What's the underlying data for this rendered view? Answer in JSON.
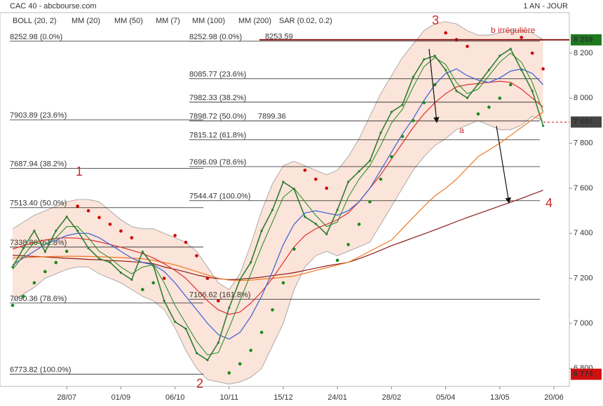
{
  "chart_data": {
    "type": "line",
    "title": "CAC 40 - abcbourse.com",
    "period": "1 AN - JOUR",
    "categories": [
      null,
      null,
      null,
      null,
      null,
      "28/07",
      null,
      null,
      null,
      null,
      "01/09",
      null,
      null,
      null,
      null,
      "06/10",
      null,
      null,
      null,
      null,
      "10/11",
      null,
      null,
      null,
      null,
      "15/12",
      null,
      null,
      null,
      null,
      "24/01",
      null,
      null,
      null,
      null,
      "28/02",
      null,
      null,
      null,
      null,
      "05/04",
      null,
      null,
      null,
      null,
      "13/05",
      null,
      null,
      null,
      null,
      "20/06"
    ],
    "values": [
      7250,
      7334,
      7411,
      7318,
      7411,
      7473,
      7411,
      7334,
      7287,
      7271,
      7225,
      7194,
      7318,
      7256,
      7100,
      7007,
      6976,
      6868,
      6837,
      6914,
      7069,
      7194,
      7271,
      7411,
      7504,
      7628,
      7597,
      7473,
      7442,
      7396,
      7504,
      7628,
      7675,
      7722,
      7846,
      7939,
      7970,
      8094,
      8172,
      8188,
      8125,
      8032,
      8001,
      8063,
      8125,
      8188,
      8219,
      8125,
      8032,
      7877,
      null
    ],
    "color": "#2e7d32",
    "series": [
      {
        "name": "BOLL (20, 2)",
        "color": "#f6c4ab",
        "upper": [
          7420,
          7450,
          7480,
          7500,
          7520,
          7540,
          7550,
          7550,
          7540,
          7500,
          7460,
          7430,
          7420,
          7420,
          7400,
          7380,
          7360,
          7320,
          7250,
          7180,
          7150,
          7220,
          7350,
          7500,
          7620,
          7700,
          7720,
          7700,
          7680,
          7660,
          7680,
          7740,
          7820,
          7920,
          8020,
          8100,
          8180,
          8240,
          8300,
          8330,
          8340,
          8330,
          8300,
          8280,
          8280,
          8290,
          8300,
          8300,
          8290,
          8260,
          null
        ],
        "lower": [
          7100,
          7130,
          7160,
          7200,
          7220,
          7240,
          7250,
          7250,
          7220,
          7200,
          7180,
          7150,
          7120,
          7100,
          7060,
          6980,
          6880,
          6800,
          6750,
          6740,
          6730,
          6740,
          6760,
          6800,
          6900,
          7000,
          7150,
          7250,
          7300,
          7320,
          7300,
          7320,
          7340,
          7360,
          7440,
          7520,
          7600,
          7680,
          7740,
          7790,
          7820,
          7860,
          7880,
          7900,
          7880,
          7860,
          7860,
          7880,
          7920,
          7900,
          null
        ]
      },
      {
        "name": "MM (20)",
        "color": "#3a5fd9",
        "values": [
          7260,
          7290,
          7320,
          7350,
          7370,
          7390,
          7400,
          7400,
          7380,
          7350,
          7320,
          7290,
          7270,
          7260,
          7230,
          7180,
          7120,
          7060,
          7000,
          6950,
          6930,
          6960,
          7030,
          7120,
          7230,
          7350,
          7440,
          7490,
          7500,
          7490,
          7480,
          7500,
          7540,
          7600,
          7680,
          7760,
          7840,
          7910,
          7990,
          8060,
          8110,
          8130,
          8100,
          8080,
          8070,
          8090,
          8120,
          8130,
          8110,
          8060,
          null
        ]
      },
      {
        "name": "MM (50)",
        "color": "#e03030",
        "values": [
          7330,
          7345,
          7360,
          7370,
          7378,
          7380,
          7378,
          7372,
          7362,
          7350,
          7338,
          7325,
          7310,
          7290,
          7265,
          7235,
          7200,
          7150,
          7100,
          7060,
          7040,
          7050,
          7090,
          7140,
          7200,
          7270,
          7340,
          7390,
          7420,
          7440,
          7460,
          7490,
          7540,
          7600,
          7660,
          7730,
          7800,
          7870,
          7930,
          7980,
          8020,
          8050,
          8060,
          8065,
          8070,
          8075,
          8070,
          8040,
          8000,
          7960,
          null
        ]
      },
      {
        "name": "MM (7)",
        "color": "#1a8a1a",
        "values": [
          7240,
          7300,
          7360,
          7350,
          7380,
          7430,
          7430,
          7380,
          7320,
          7290,
          7250,
          7220,
          7250,
          7260,
          7180,
          7080,
          7000,
          6920,
          6860,
          6870,
          6980,
          7100,
          7220,
          7340,
          7450,
          7560,
          7600,
          7540,
          7480,
          7430,
          7450,
          7560,
          7640,
          7700,
          7790,
          7890,
          7950,
          8050,
          8140,
          8180,
          8150,
          8070,
          8020,
          8040,
          8100,
          8160,
          8200,
          8160,
          8070,
          7940,
          null
        ]
      },
      {
        "name": "MM (100)",
        "color": "#f07820",
        "values": [
          7290,
          7292,
          7294,
          7296,
          7297,
          7298,
          7298,
          7297,
          7296,
          7294,
          7292,
          7290,
          7287,
          7280,
          7270,
          7260,
          7245,
          7230,
          7215,
          7200,
          7192,
          7190,
          7192,
          7196,
          7200,
          7205,
          7210,
          7222,
          7235,
          7247,
          7259,
          7271,
          7295,
          7320,
          7345,
          7370,
          7420,
          7470,
          7520,
          7566,
          7600,
          7640,
          7690,
          7740,
          7770,
          7800,
          7835,
          7870,
          7905,
          7939,
          null
        ]
      },
      {
        "name": "MM (200)",
        "color": "#8b1a1a",
        "values": [
          7302,
          7300,
          7297,
          7295,
          7292,
          7289,
          7287,
          7284,
          7282,
          7279,
          7277,
          7274,
          7271,
          7265,
          7250,
          7240,
          7228,
          7215,
          7205,
          7198,
          7194,
          7196,
          7200,
          7205,
          7212,
          7218,
          7225,
          7235,
          7245,
          7255,
          7263,
          7271,
          7287,
          7305,
          7325,
          7345,
          7362,
          7380,
          7397,
          7415,
          7433,
          7452,
          7470,
          7487,
          7504,
          7521,
          7538,
          7555,
          7573,
          7591,
          null
        ]
      },
      {
        "name": "SAR (0.02, 0.2)",
        "color": "#b22222",
        "color_below": "#1a8a1a",
        "color_above": "#d00000",
        "values": [
          7080,
          7120,
          7180,
          7230,
          7270,
          7320,
          7520,
          7500,
          7470,
          7440,
          7410,
          7380,
          7150,
          7180,
          7200,
          7390,
          7360,
          7300,
          7200,
          7100,
          6780,
          6820,
          6880,
          6960,
          7060,
          7180,
          7330,
          7680,
          7640,
          7600,
          7280,
          7350,
          7440,
          7540,
          7640,
          7740,
          7830,
          7900,
          7980,
          8060,
          8290,
          8260,
          8230,
          7930,
          7960,
          8000,
          8060,
          8270,
          8200,
          8130,
          null
        ]
      }
    ],
    "ylim": [
      6720,
      8380
    ],
    "yticks": [
      {
        "value": 6800,
        "label": "6 800"
      },
      {
        "value": 7000,
        "label": "7 000"
      },
      {
        "value": 7200,
        "label": "7 200"
      },
      {
        "value": 7400,
        "label": "7 400"
      },
      {
        "value": 7600,
        "label": "7 600"
      },
      {
        "value": 7800,
        "label": "7 800"
      },
      {
        "value": 8000,
        "label": "8 000"
      },
      {
        "value": 8200,
        "label": "8 200"
      }
    ],
    "fibonacci": {
      "left": [
        {
          "value": 8252.98,
          "label": "8252.98  (0.0%)"
        },
        {
          "value": 7903.89,
          "label": "7903.89  (23.6%)"
        },
        {
          "value": 7687.94,
          "label": "7687.94  (38.2%)"
        },
        {
          "value": 7513.4,
          "label": "7513.40  (50.0%)"
        },
        {
          "value": 7338.86,
          "label": "7338.86  (61.8%)"
        },
        {
          "value": 7090.36,
          "label": "7090.36  (78.6%)"
        },
        {
          "value": 6773.82,
          "label": "6773.82  (100.0%)"
        }
      ],
      "right": [
        {
          "value": 8252.98,
          "label": "8252.98  (0.0%)"
        },
        {
          "value": 8085.77,
          "label": "8085.77  (23.6%)"
        },
        {
          "value": 7982.33,
          "label": "7982.33  (38.2%)"
        },
        {
          "value": 7898.72,
          "label": "7898.72  (50.0%)"
        },
        {
          "value": 7815.12,
          "label": "7815.12  (61.8%)"
        },
        {
          "value": 7696.09,
          "label": "7696.09  (78.6%)"
        },
        {
          "value": 7544.47,
          "label": "7544.47  (100.0%)"
        },
        {
          "value": 7106.62,
          "label": "7106.62  (161.8%)"
        }
      ]
    },
    "price_marks": [
      8253.59,
      7899.36
    ],
    "tags": [
      {
        "value": 8259,
        "label": "8 259",
        "color": "#1e7a1e"
      },
      {
        "value": 7894,
        "label": "7 894",
        "color": "#444444"
      },
      {
        "value": 6774,
        "label": "6 774",
        "color": "#d01010"
      }
    ],
    "wave_labels": [
      "1",
      "2",
      "3",
      "4",
      "a",
      "b irrégulière"
    ]
  }
}
